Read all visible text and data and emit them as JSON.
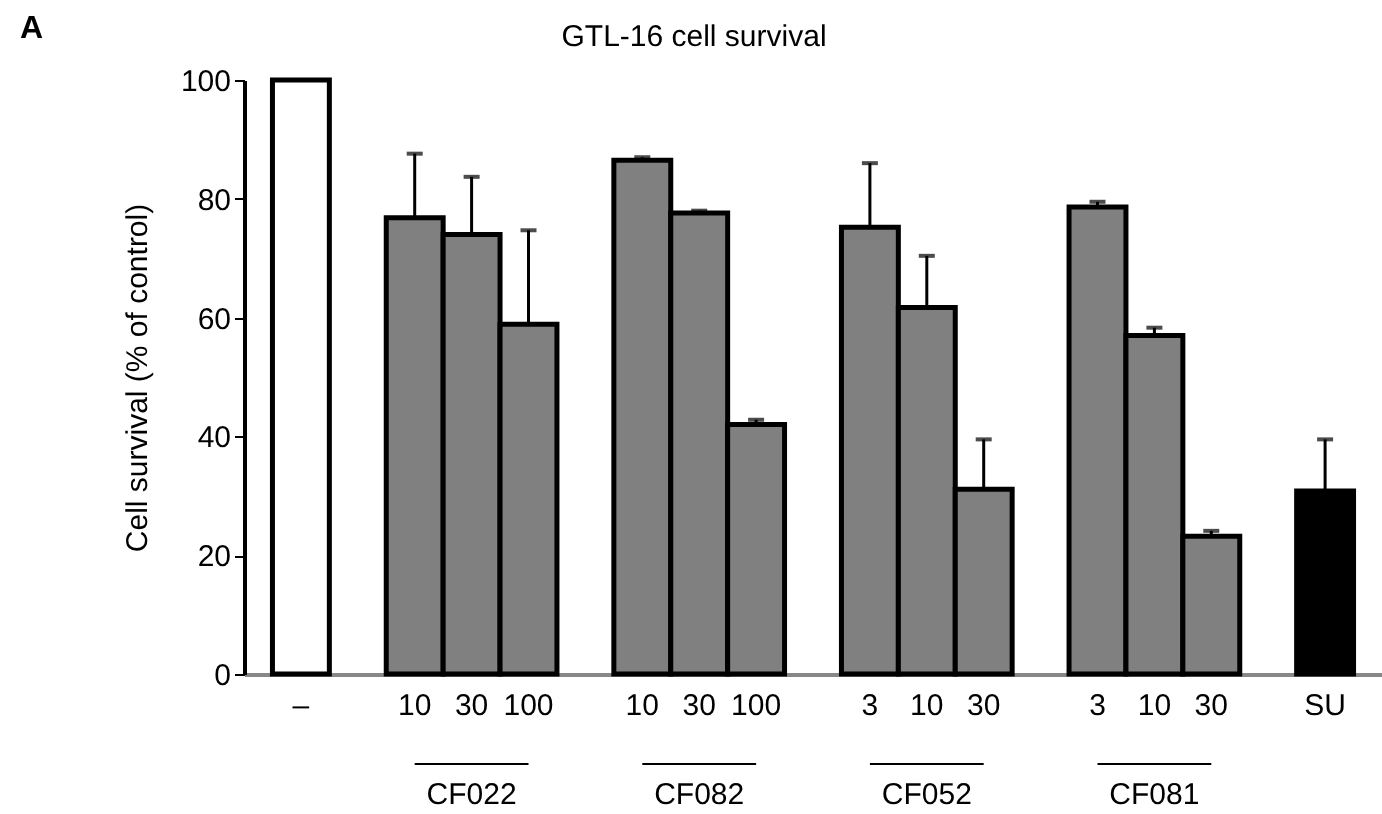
{
  "chart_data": {
    "type": "bar",
    "title": "GTL-16 cell survival",
    "ylabel": "Cell survival (% of control)",
    "categories": [
      "–",
      "10",
      "30",
      "100",
      "10",
      "30",
      "100",
      "3",
      "10",
      "30",
      "3",
      "10",
      "30",
      "SU"
    ],
    "values": [
      100,
      76.8,
      74,
      58.9,
      86.5,
      77.6,
      42,
      75.2,
      61.7,
      31.1,
      78.6,
      57,
      23.2,
      30.8
    ],
    "colors": [
      "#ffffff",
      "#808080",
      "#808080",
      "#808080",
      "#808080",
      "#808080",
      "#808080",
      "#808080",
      "#808080",
      "#808080",
      "#808080",
      "#808080",
      "#808080",
      "#000000"
    ],
    "errors": [
      null,
      [
        76.8,
        87.6
      ],
      [
        74,
        83.7
      ],
      [
        58.9,
        74.7
      ],
      [
        86.5,
        87
      ],
      [
        77.6,
        78
      ],
      [
        42,
        42.8
      ],
      [
        75.2,
        86
      ],
      [
        61.7,
        70.4
      ],
      [
        31.1,
        39.5
      ],
      [
        78.6,
        79.5
      ],
      [
        57,
        58.3
      ],
      [
        23.2,
        24.1
      ],
      [
        30.8,
        39.5
      ]
    ],
    "ylim": [
      0,
      100
    ],
    "yticks": [
      0,
      20,
      40,
      60,
      80,
      100
    ],
    "grid": false,
    "annotations": [
      "A",
      "CF022",
      "CF082",
      "CF052",
      "CF081"
    ]
  }
}
